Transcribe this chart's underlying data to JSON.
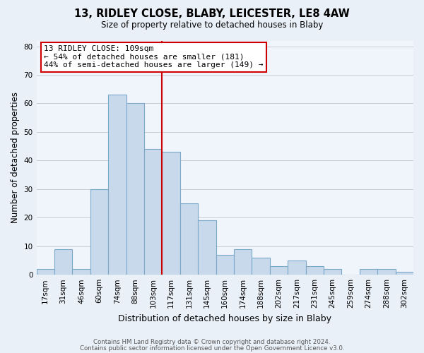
{
  "title": "13, RIDLEY CLOSE, BLABY, LEICESTER, LE8 4AW",
  "subtitle": "Size of property relative to detached houses in Blaby",
  "xlabel": "Distribution of detached houses by size in Blaby",
  "ylabel": "Number of detached properties",
  "bar_labels": [
    "17sqm",
    "31sqm",
    "46sqm",
    "60sqm",
    "74sqm",
    "88sqm",
    "103sqm",
    "117sqm",
    "131sqm",
    "145sqm",
    "160sqm",
    "174sqm",
    "188sqm",
    "202sqm",
    "217sqm",
    "231sqm",
    "245sqm",
    "259sqm",
    "274sqm",
    "288sqm",
    "302sqm"
  ],
  "bar_values": [
    2,
    9,
    2,
    30,
    63,
    60,
    44,
    43,
    25,
    19,
    7,
    9,
    6,
    3,
    5,
    3,
    2,
    0,
    2,
    2,
    1
  ],
  "bar_color": "#c9d9ec",
  "bar_edge_color": "#7ba7c9",
  "vline_color": "#cc0000",
  "annotation_title": "13 RIDLEY CLOSE: 109sqm",
  "annotation_line1": "← 54% of detached houses are smaller (181)",
  "annotation_line2": "44% of semi-detached houses are larger (149) →",
  "annotation_box_color": "#ffffff",
  "annotation_box_edge_color": "#cc0000",
  "ylim": [
    0,
    82
  ],
  "yticks": [
    0,
    10,
    20,
    30,
    40,
    50,
    60,
    70,
    80
  ],
  "footer1": "Contains HM Land Registry data © Crown copyright and database right 2024.",
  "footer2": "Contains public sector information licensed under the Open Government Licence v3.0.",
  "bg_color": "#eaf0f8",
  "plot_bg_color": "#f0f5fb"
}
